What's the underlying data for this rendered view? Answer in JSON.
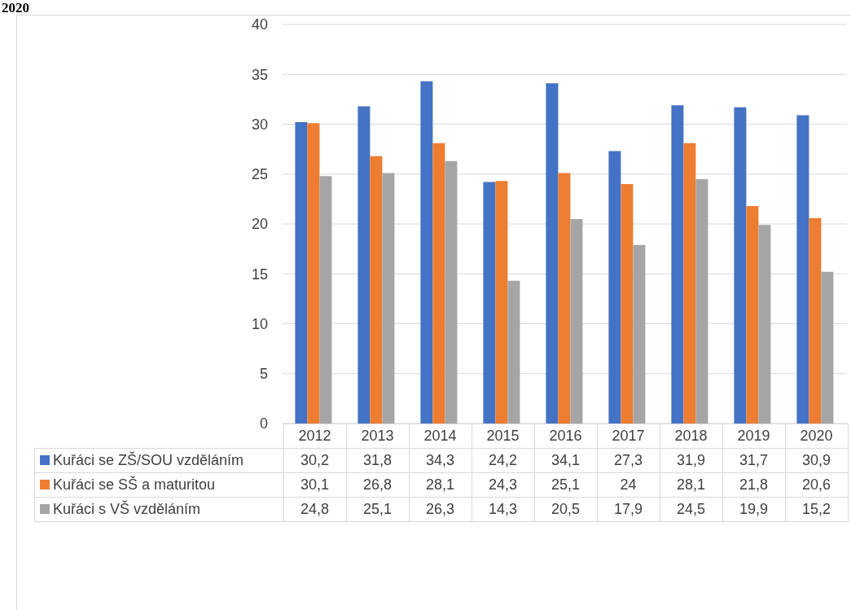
{
  "chart_data": {
    "type": "bar",
    "title": "2020",
    "categories": [
      "2012",
      "2013",
      "2014",
      "2015",
      "2016",
      "2017",
      "2018",
      "2019",
      "2020"
    ],
    "series": [
      {
        "name": "Kuřáci se ZŠ/SOU vzděláním",
        "color": "#4472c4",
        "values": [
          30.2,
          31.8,
          34.3,
          24.2,
          34.1,
          27.3,
          31.9,
          31.7,
          30.9
        ],
        "value_labels": [
          "30,2",
          "31,8",
          "34,3",
          "24,2",
          "34,1",
          "27,3",
          "31,9",
          "31,7",
          "30,9"
        ]
      },
      {
        "name": "Kuřáci se SŠ a maturitou",
        "color": "#ed7d31",
        "values": [
          30.1,
          26.8,
          28.1,
          24.3,
          25.1,
          24,
          28.1,
          21.8,
          20.6
        ],
        "value_labels": [
          "30,1",
          "26,8",
          "28,1",
          "24,3",
          "25,1",
          "24",
          "28,1",
          "21,8",
          "20,6"
        ]
      },
      {
        "name": "Kuřáci s VŠ vzděláním",
        "color": "#a5a5a5",
        "values": [
          24.8,
          25.1,
          26.3,
          14.3,
          20.5,
          17.9,
          24.5,
          19.9,
          15.2
        ],
        "value_labels": [
          "24,8",
          "25,1",
          "26,3",
          "14,3",
          "20,5",
          "17,9",
          "24,5",
          "19,9",
          "15,2"
        ]
      }
    ],
    "ylim": [
      0,
      40
    ],
    "yticks": [
      0,
      5,
      10,
      15,
      20,
      25,
      30,
      35,
      40
    ],
    "grid": "y",
    "legend": "bottom"
  }
}
